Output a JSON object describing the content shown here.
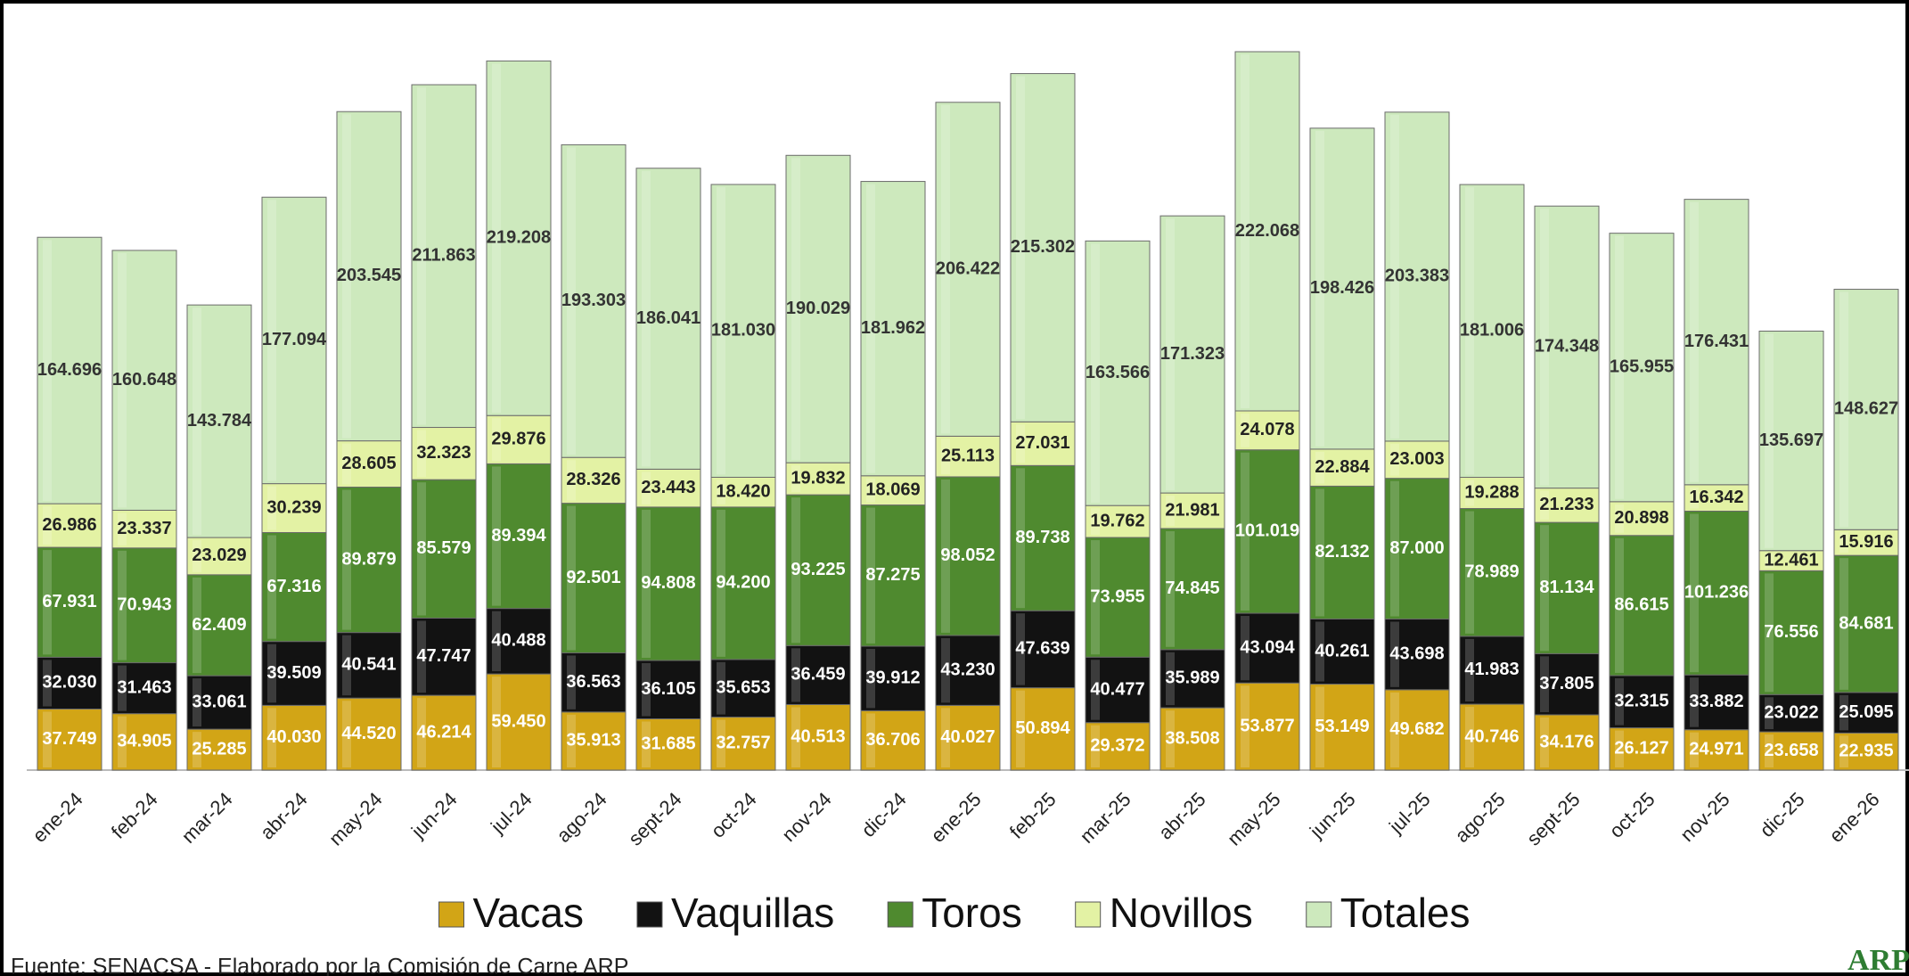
{
  "chart_data": {
    "type": "stacked-bar",
    "categories": [
      "ene-24",
      "feb-24",
      "mar-24",
      "abr-24",
      "may-24",
      "jun-24",
      "jul-24",
      "ago-24",
      "sept-24",
      "oct-24",
      "nov-24",
      "dic-24",
      "ene-25",
      "feb-25",
      "mar-25",
      "abr-25",
      "may-25",
      "jun-25",
      "jul-25",
      "ago-25",
      "sept-25",
      "oct-25",
      "nov-25",
      "dic-25",
      "ene-26"
    ],
    "series": [
      {
        "name": "Vacas",
        "color": "#d2a516",
        "label_color": "#ffffff",
        "values": [
          37749,
          34905,
          25285,
          40030,
          44520,
          46214,
          59450,
          35913,
          31685,
          32757,
          40513,
          36706,
          40027,
          50894,
          29372,
          38508,
          53877,
          53149,
          49682,
          40746,
          34176,
          26127,
          24971,
          23658,
          22935
        ],
        "value_labels": [
          "37.749",
          "34.905",
          "25.285",
          "40.030",
          "44.520",
          "46.214",
          "59.450",
          "35.913",
          "31.685",
          "32.757",
          "40.513",
          "36.706",
          "40.027",
          "50.894",
          "29.372",
          "38.508",
          "53.877",
          "53.149",
          "49.682",
          "40.746",
          "34.176",
          "26.127",
          "24.971",
          "23.658",
          "22.935"
        ]
      },
      {
        "name": "Vaquillas",
        "color": "#121212",
        "label_color": "#ffffff",
        "values": [
          32030,
          31463,
          33061,
          39509,
          40541,
          47747,
          40488,
          36563,
          36105,
          35653,
          36459,
          39912,
          43230,
          47639,
          40477,
          35989,
          43094,
          40261,
          43698,
          41983,
          37805,
          32315,
          33882,
          23022,
          25095
        ],
        "value_labels": [
          "32.030",
          "31.463",
          "33.061",
          "39.509",
          "40.541",
          "47.747",
          "40.488",
          "36.563",
          "36.105",
          "35.653",
          "36.459",
          "39.912",
          "43.230",
          "47.639",
          "40.477",
          "35.989",
          "43.094",
          "40.261",
          "43.698",
          "41.983",
          "37.805",
          "32.315",
          "33.882",
          "23.022",
          "25.095"
        ]
      },
      {
        "name": "Toros",
        "color": "#4f8a2f",
        "label_color": "#ffffff",
        "values": [
          67931,
          70943,
          62409,
          67316,
          89879,
          85579,
          89394,
          92501,
          94808,
          94200,
          93225,
          87275,
          98052,
          89738,
          73955,
          74845,
          101019,
          82132,
          87000,
          78989,
          81134,
          86615,
          101236,
          76556,
          84681
        ],
        "value_labels": [
          "67.931",
          "70.943",
          "62.409",
          "67.316",
          "89.879",
          "85.579",
          "89.394",
          "92.501",
          "94.808",
          "94.200",
          "93.225",
          "87.275",
          "98.052",
          "89.738",
          "73.955",
          "74.845",
          "101.019",
          "82.132",
          "87.000",
          "78.989",
          "81.134",
          "86.615",
          "101.236",
          "76.556",
          "84.681"
        ]
      },
      {
        "name": "Novillos",
        "color": "#e3f2a4",
        "label_color": "#222222",
        "values": [
          26986,
          23337,
          23029,
          30239,
          28605,
          32323,
          29876,
          28326,
          23443,
          18420,
          19832,
          18069,
          25113,
          27031,
          19762,
          21981,
          24078,
          22884,
          23003,
          19288,
          21233,
          20898,
          16342,
          12461,
          15916
        ],
        "value_labels": [
          "26.986",
          "23.337",
          "23.029",
          "30.239",
          "28.605",
          "32.323",
          "29.876",
          "28.326",
          "23.443",
          "18.420",
          "19.832",
          "18.069",
          "25.113",
          "27.031",
          "19.762",
          "21.981",
          "24.078",
          "22.884",
          "23.003",
          "19.288",
          "21.233",
          "20.898",
          "16.342",
          "12.461",
          "15.916"
        ]
      },
      {
        "name": "Totales",
        "color": "#cde9bd",
        "label_color": "#333333",
        "values": [
          164696,
          160648,
          143784,
          177094,
          203545,
          211863,
          219208,
          193303,
          186041,
          181030,
          190029,
          181962,
          206422,
          215302,
          163566,
          171323,
          222068,
          198426,
          203383,
          181006,
          174348,
          165955,
          176431,
          135697,
          148627
        ],
        "value_labels": [
          "164.696",
          "160.648",
          "143.784",
          "177.094",
          "203.545",
          "211.863",
          "219.208",
          "193.303",
          "186.041",
          "181.030",
          "190.029",
          "181.962",
          "206.422",
          "215.302",
          "163.566",
          "171.323",
          "222.068",
          "198.426",
          "203.383",
          "181.006",
          "174.348",
          "165.955",
          "176.431",
          "135.697",
          "148.627"
        ]
      }
    ],
    "legend": "bottom",
    "source": "Fuente: SENACSA - Elaborado por la Comisión de Carne ARP",
    "logo": "ARP"
  }
}
